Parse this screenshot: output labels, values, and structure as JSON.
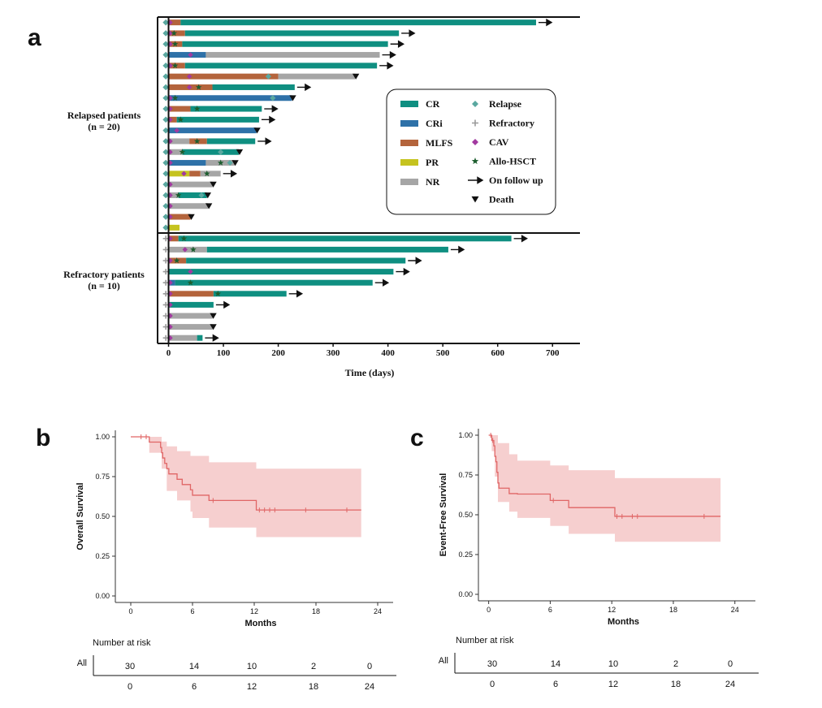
{
  "figure": {
    "panel_a_label": "a",
    "panel_b_label": "b",
    "panel_c_label": "c"
  },
  "swimmer": {
    "group_relapsed_line1": "Relapsed patients",
    "group_relapsed_line2": "(n = 20)",
    "group_refractory_line1": "Refractory patients",
    "group_refractory_line2": "(n = 10)"
  },
  "colors": {
    "CR": "#0f8f81",
    "CRi": "#2e71a8",
    "MLFS": "#b4643c",
    "PR": "#c5c31f",
    "NR": "#a6a6a6",
    "relapse": "#5aa8a0",
    "refractory": "#9a9a9a",
    "cav": "#a23aa0",
    "allo": "#1d5e2f",
    "km_line": "#e06666",
    "km_band": "#f4c7c7"
  },
  "chart_data": [
    {
      "type": "bar",
      "subtype": "swimmer",
      "xlabel": "Time (days)",
      "xlim": [
        -20,
        750
      ],
      "xticks": [
        0,
        100,
        200,
        300,
        400,
        500,
        600,
        700
      ],
      "legend": {
        "placement": "inside-right",
        "items": [
          {
            "label": "CR",
            "kind": "bar",
            "color_key": "CR"
          },
          {
            "label": "CRi",
            "kind": "bar",
            "color_key": "CRi"
          },
          {
            "label": "MLFS",
            "kind": "bar",
            "color_key": "MLFS"
          },
          {
            "label": "PR",
            "kind": "bar",
            "color_key": "PR"
          },
          {
            "label": "NR",
            "kind": "bar",
            "color_key": "NR"
          },
          {
            "label": "Relapse",
            "kind": "diamond",
            "color_key": "relapse"
          },
          {
            "label": "Refractory",
            "kind": "plus",
            "color_key": "refractory"
          },
          {
            "label": "CAV",
            "kind": "diamond",
            "color_key": "cav"
          },
          {
            "label": "Allo-HSCT",
            "kind": "star",
            "color_key": "allo"
          },
          {
            "label": "On follow up",
            "kind": "arrow",
            "color_key": ""
          },
          {
            "label": "Death",
            "kind": "triangle",
            "color_key": ""
          }
        ]
      },
      "patients": [
        {
          "group": "relapsed",
          "start": "relapse",
          "segs": [
            [
              "MLFS",
              0,
              22
            ],
            [
              "CR",
              22,
              670
            ]
          ],
          "cav": 3,
          "allo": null,
          "end": "follow"
        },
        {
          "group": "relapsed",
          "start": "relapse",
          "segs": [
            [
              "MLFS",
              0,
              30
            ],
            [
              "CR",
              30,
              420
            ]
          ],
          "cav": 3,
          "allo": 10,
          "end": "follow"
        },
        {
          "group": "relapsed",
          "start": "relapse",
          "segs": [
            [
              "MLFS",
              0,
              25
            ],
            [
              "CR",
              25,
              400
            ]
          ],
          "cav": 3,
          "allo": 12,
          "end": "follow"
        },
        {
          "group": "relapsed",
          "start": "relapse",
          "segs": [
            [
              "CRi",
              0,
              68
            ],
            [
              "NR",
              68,
              385
            ]
          ],
          "cav": 40,
          "allo": null,
          "end": "follow"
        },
        {
          "group": "relapsed",
          "start": "relapse",
          "segs": [
            [
              "MLFS",
              0,
              30
            ],
            [
              "CR",
              30,
              380
            ]
          ],
          "cav": 3,
          "allo": 12,
          "end": "follow"
        },
        {
          "group": "relapsed",
          "start": "relapse",
          "segs": [
            [
              "MLFS",
              0,
              200
            ],
            [
              "NR",
              200,
              340
            ]
          ],
          "cav": 38,
          "allo": null,
          "relapse_mid": [
            182
          ],
          "end": "death"
        },
        {
          "group": "relapsed",
          "start": "relapse",
          "segs": [
            [
              "MLFS",
              0,
              80
            ],
            [
              "CR",
              80,
              230
            ]
          ],
          "cav": 38,
          "allo": 55,
          "end": "follow"
        },
        {
          "group": "relapsed",
          "start": "relapse",
          "segs": [
            [
              "CRi",
              0,
              225
            ]
          ],
          "cav": 3,
          "allo": 12,
          "relapse_mid": [
            190
          ],
          "end": "death"
        },
        {
          "group": "relapsed",
          "start": "relapse",
          "segs": [
            [
              "MLFS",
              0,
              40
            ],
            [
              "CR",
              40,
              170
            ]
          ],
          "cav": 3,
          "allo": 52,
          "end": "follow"
        },
        {
          "group": "relapsed",
          "start": "relapse",
          "segs": [
            [
              "MLFS",
              0,
              15
            ],
            [
              "CR",
              15,
              165
            ]
          ],
          "cav": 3,
          "allo": 22,
          "end": "follow"
        },
        {
          "group": "relapsed",
          "start": "relapse",
          "segs": [
            [
              "CRi",
              0,
              160
            ]
          ],
          "cav": 15,
          "allo": null,
          "end": "death"
        },
        {
          "group": "relapsed",
          "start": "relapse",
          "segs": [
            [
              "NR",
              0,
              38
            ],
            [
              "MLFS",
              38,
              70
            ],
            [
              "CR",
              70,
              158
            ]
          ],
          "cav": 3,
          "allo": 52,
          "end": "follow"
        },
        {
          "group": "relapsed",
          "start": "relapse",
          "segs": [
            [
              "NR",
              0,
              25
            ],
            [
              "CR",
              25,
              128
            ]
          ],
          "cav": 3,
          "allo": 25,
          "relapse_mid": [
            95
          ],
          "end": "death"
        },
        {
          "group": "relapsed",
          "start": "relapse",
          "segs": [
            [
              "CRi",
              0,
              68
            ],
            [
              "NR",
              68,
              120
            ]
          ],
          "cav": 3,
          "allo": 95,
          "relapse_mid": [
            112
          ],
          "end": "death"
        },
        {
          "group": "relapsed",
          "start": "relapse",
          "segs": [
            [
              "PR",
              0,
              38
            ],
            [
              "MLFS",
              38,
              58
            ],
            [
              "NR",
              58,
              95
            ]
          ],
          "cav": 28,
          "allo": 70,
          "end": "follow"
        },
        {
          "group": "relapsed",
          "start": "relapse",
          "segs": [
            [
              "NR",
              0,
              80
            ]
          ],
          "cav": 3,
          "allo": null,
          "end": "death"
        },
        {
          "group": "relapsed",
          "start": "relapse",
          "segs": [
            [
              "NR",
              0,
              18
            ],
            [
              "CR",
              18,
              70
            ]
          ],
          "cav": 3,
          "allo": 18,
          "relapse_mid": [
            60
          ],
          "end": "death"
        },
        {
          "group": "relapsed",
          "start": "relapse",
          "segs": [
            [
              "NR",
              0,
              72
            ]
          ],
          "cav": 3,
          "allo": null,
          "end": "death"
        },
        {
          "group": "relapsed",
          "start": "relapse",
          "segs": [
            [
              "MLFS",
              0,
              40
            ]
          ],
          "cav": 3,
          "allo": null,
          "end": "death"
        },
        {
          "group": "relapsed",
          "start": "relapse",
          "segs": [
            [
              "PR",
              0,
              20
            ]
          ],
          "cav": null,
          "allo": null,
          "end": "none"
        },
        {
          "group": "refractory",
          "start": "refractory",
          "segs": [
            [
              "MLFS",
              0,
              18
            ],
            [
              "CR",
              18,
              625
            ]
          ],
          "cav": 3,
          "allo": 28,
          "end": "follow"
        },
        {
          "group": "refractory",
          "start": "refractory",
          "segs": [
            [
              "NR",
              0,
              70
            ],
            [
              "CR",
              70,
              510
            ]
          ],
          "cav": 30,
          "allo": 45,
          "end": "follow"
        },
        {
          "group": "refractory",
          "start": "refractory",
          "segs": [
            [
              "MLFS",
              0,
              32
            ],
            [
              "CR",
              32,
              432
            ]
          ],
          "cav": 3,
          "allo": 15,
          "end": "follow"
        },
        {
          "group": "refractory",
          "start": "refractory",
          "segs": [
            [
              "CR",
              0,
              410
            ]
          ],
          "cav": 40,
          "allo": null,
          "end": "follow"
        },
        {
          "group": "refractory",
          "start": "refractory",
          "segs": [
            [
              "CRi",
              0,
              12
            ],
            [
              "CR",
              12,
              372
            ]
          ],
          "cav": 3,
          "allo": 40,
          "end": "follow"
        },
        {
          "group": "refractory",
          "start": "refractory",
          "segs": [
            [
              "MLFS",
              0,
              82
            ],
            [
              "CR",
              82,
              215
            ]
          ],
          "cav": 3,
          "allo": 90,
          "end": "follow"
        },
        {
          "group": "refractory",
          "start": "refractory",
          "segs": [
            [
              "CR",
              0,
              82
            ]
          ],
          "cav": 3,
          "allo": null,
          "end": "follow"
        },
        {
          "group": "refractory",
          "start": "refractory",
          "segs": [
            [
              "NR",
              0,
              80
            ]
          ],
          "cav": 3,
          "allo": null,
          "end": "death"
        },
        {
          "group": "refractory",
          "start": "refractory",
          "segs": [
            [
              "NR",
              0,
              80
            ]
          ],
          "cav": 3,
          "allo": null,
          "end": "death"
        },
        {
          "group": "refractory",
          "start": "refractory",
          "segs": [
            [
              "NR",
              0,
              52
            ],
            [
              "CR",
              52,
              62
            ]
          ],
          "cav": 3,
          "allo": null,
          "end": "follow"
        }
      ]
    },
    {
      "type": "line",
      "subtype": "kaplan-meier",
      "ylabel": "Overall Survival",
      "xlabel": "Months",
      "xlim": [
        -1.5,
        25.5
      ],
      "ylim": [
        0,
        1.0
      ],
      "xticks": [
        0,
        6,
        12,
        18,
        24
      ],
      "yticks": [
        "0.00",
        "0.25",
        "0.50",
        "0.75",
        "1.00"
      ],
      "steps": [
        [
          0,
          1.0
        ],
        [
          1.8,
          0.967
        ],
        [
          2.9,
          0.933
        ],
        [
          3.0,
          0.9
        ],
        [
          3.1,
          0.867
        ],
        [
          3.3,
          0.833
        ],
        [
          3.5,
          0.8
        ],
        [
          3.7,
          0.767
        ],
        [
          4.5,
          0.733
        ],
        [
          5.0,
          0.7
        ],
        [
          5.8,
          0.667
        ],
        [
          6.0,
          0.633
        ],
        [
          7.6,
          0.6
        ],
        [
          12.2,
          0.54
        ],
        [
          22.4,
          0.54
        ]
      ],
      "upper": [
        [
          0,
          1.0
        ],
        [
          1.8,
          1.0
        ],
        [
          3.0,
          0.97
        ],
        [
          3.5,
          0.94
        ],
        [
          4.5,
          0.91
        ],
        [
          5.8,
          0.88
        ],
        [
          7.6,
          0.84
        ],
        [
          12.2,
          0.8
        ],
        [
          22.4,
          0.8
        ]
      ],
      "lower": [
        [
          0,
          1.0
        ],
        [
          1.8,
          0.9
        ],
        [
          3.0,
          0.8
        ],
        [
          3.5,
          0.66
        ],
        [
          4.5,
          0.6
        ],
        [
          5.8,
          0.53
        ],
        [
          6.0,
          0.49
        ],
        [
          7.6,
          0.43
        ],
        [
          12.2,
          0.37
        ],
        [
          22.4,
          0.37
        ]
      ],
      "censored": [
        1.0,
        1.5,
        8.0,
        12.5,
        13.0,
        13.5,
        14.0,
        17.0,
        21.0
      ],
      "risk_table": {
        "title": "Number at risk",
        "row_label": "All",
        "counts": [
          "30",
          "14",
          "10",
          "2",
          "0"
        ],
        "times": [
          "0",
          "6",
          "12",
          "18",
          "24"
        ]
      }
    },
    {
      "type": "line",
      "subtype": "kaplan-meier",
      "ylabel": "Event-Free Survival",
      "xlabel": "Months",
      "xlim": [
        -1,
        26
      ],
      "ylim": [
        0,
        1.0
      ],
      "xticks": [
        0,
        6,
        12,
        18,
        24
      ],
      "yticks": [
        "0.00",
        "0.25",
        "0.50",
        "0.75",
        "1.00"
      ],
      "steps": [
        [
          0,
          1.0
        ],
        [
          0.3,
          0.967
        ],
        [
          0.5,
          0.933
        ],
        [
          0.6,
          0.867
        ],
        [
          0.7,
          0.833
        ],
        [
          0.8,
          0.767
        ],
        [
          0.9,
          0.7
        ],
        [
          1.0,
          0.667
        ],
        [
          2.0,
          0.633
        ],
        [
          2.8,
          0.63
        ],
        [
          6.0,
          0.59
        ],
        [
          7.8,
          0.545
        ],
        [
          12.3,
          0.49
        ],
        [
          22.6,
          0.49
        ]
      ],
      "upper": [
        [
          0,
          1.0
        ],
        [
          0.9,
          0.95
        ],
        [
          2.0,
          0.88
        ],
        [
          2.8,
          0.84
        ],
        [
          6.0,
          0.81
        ],
        [
          7.8,
          0.78
        ],
        [
          12.3,
          0.73
        ],
        [
          22.6,
          0.73
        ]
      ],
      "lower": [
        [
          0,
          1.0
        ],
        [
          0.3,
          0.9
        ],
        [
          0.6,
          0.74
        ],
        [
          0.9,
          0.58
        ],
        [
          2.0,
          0.52
        ],
        [
          2.8,
          0.48
        ],
        [
          6.0,
          0.43
        ],
        [
          7.8,
          0.38
        ],
        [
          12.3,
          0.33
        ],
        [
          22.6,
          0.33
        ]
      ],
      "censored": [
        0.2,
        0.4,
        6.3,
        12.5,
        13.0,
        14.0,
        14.5,
        21.0
      ],
      "risk_table": {
        "title": "Number at risk",
        "row_label": "All",
        "counts": [
          "30",
          "14",
          "10",
          "2",
          "0"
        ],
        "times": [
          "0",
          "6",
          "12",
          "18",
          "24"
        ]
      }
    }
  ]
}
